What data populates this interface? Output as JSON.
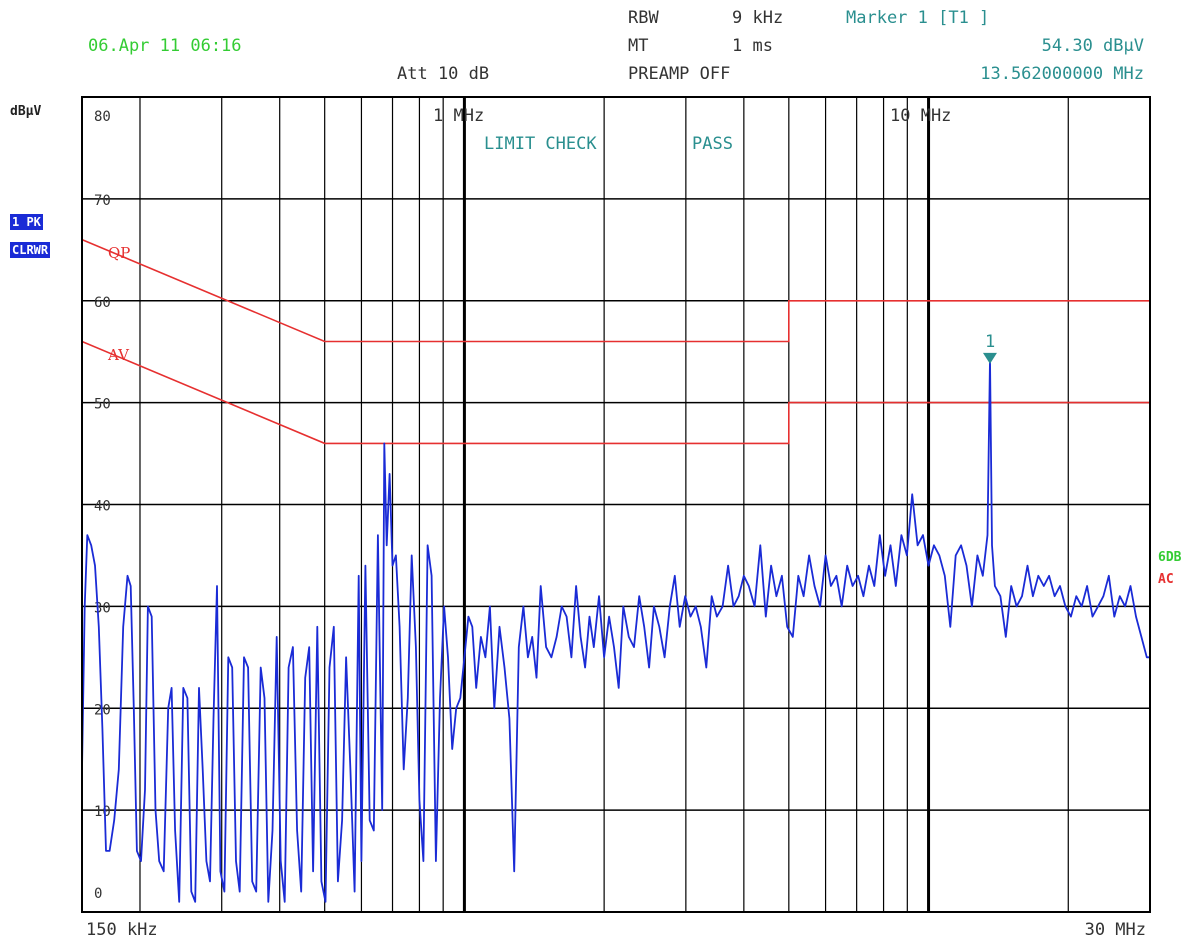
{
  "header": {
    "datetime": "06.Apr 11 06:16",
    "rbw_label": "RBW",
    "rbw_value": "9 kHz",
    "mt_label": "MT",
    "mt_value": "1 ms",
    "att": "Att 10 dB",
    "preamp": "PREAMP OFF",
    "marker_title": "Marker 1 [T1 ]",
    "marker_level": "54.30 dBµV",
    "marker_freq": "13.562000000 MHz"
  },
  "side": {
    "unit": "dBµV",
    "trace_badge_1": "1 PK",
    "trace_badge_2": "CLRWR",
    "right_label_1": "6DB",
    "right_label_2": "AC"
  },
  "colors": {
    "trace": "#1a2bd6",
    "limit": "#e63030",
    "annotation": "#2a8f8f",
    "grid": "#000000"
  },
  "chart_data": {
    "type": "line",
    "x_scale": "log",
    "xlim_hz": [
      150000,
      30000000
    ],
    "ylim": [
      0,
      80
    ],
    "y_ticks": [
      0,
      10,
      20,
      30,
      40,
      50,
      60,
      70,
      80
    ],
    "x_tick_labels": [
      {
        "label": "1 MHz",
        "hz": 1000000
      },
      {
        "label": "10 MHz",
        "hz": 10000000
      }
    ],
    "x_edge_labels": {
      "start": "150 kHz",
      "stop": "30 MHz"
    },
    "status_text": [
      "LIMIT CHECK",
      "PASS"
    ],
    "limit_lines": [
      {
        "name": "QP",
        "points": [
          [
            150000,
            66
          ],
          [
            500000,
            56
          ],
          [
            5000000,
            56
          ],
          [
            5000000,
            60
          ],
          [
            30000000,
            60
          ]
        ]
      },
      {
        "name": "AV",
        "points": [
          [
            150000,
            56
          ],
          [
            500000,
            46
          ],
          [
            5000000,
            46
          ],
          [
            5000000,
            50
          ],
          [
            30000000,
            50
          ]
        ]
      }
    ],
    "marker": {
      "label": "1",
      "freq_hz": 13562000,
      "level": 54.3
    },
    "series": [
      {
        "points": [
          [
            150000,
            14
          ],
          [
            152000,
            30
          ],
          [
            154000,
            37
          ],
          [
            157000,
            36
          ],
          [
            160000,
            34
          ],
          [
            163000,
            28
          ],
          [
            166000,
            18
          ],
          [
            169000,
            6
          ],
          [
            172000,
            6
          ],
          [
            176000,
            9
          ],
          [
            180000,
            14
          ],
          [
            184000,
            28
          ],
          [
            188000,
            33
          ],
          [
            191000,
            32
          ],
          [
            194000,
            20
          ],
          [
            197000,
            6
          ],
          [
            201000,
            5
          ],
          [
            205000,
            12
          ],
          [
            208000,
            30
          ],
          [
            212000,
            29
          ],
          [
            216000,
            10
          ],
          [
            220000,
            5
          ],
          [
            225000,
            4
          ],
          [
            230000,
            20
          ],
          [
            234000,
            22
          ],
          [
            238000,
            8
          ],
          [
            243000,
            1
          ],
          [
            248000,
            22
          ],
          [
            253000,
            21
          ],
          [
            258000,
            2
          ],
          [
            263000,
            1
          ],
          [
            268000,
            22
          ],
          [
            273000,
            14
          ],
          [
            278000,
            5
          ],
          [
            283000,
            3
          ],
          [
            288000,
            19
          ],
          [
            293000,
            32
          ],
          [
            298000,
            4
          ],
          [
            304000,
            2
          ],
          [
            310000,
            25
          ],
          [
            316000,
            24
          ],
          [
            322000,
            5
          ],
          [
            328000,
            2
          ],
          [
            335000,
            25
          ],
          [
            342000,
            24
          ],
          [
            349000,
            3
          ],
          [
            356000,
            2
          ],
          [
            364000,
            24
          ],
          [
            371000,
            21
          ],
          [
            378000,
            1
          ],
          [
            386000,
            8
          ],
          [
            394000,
            27
          ],
          [
            402000,
            5
          ],
          [
            410000,
            1
          ],
          [
            418000,
            24
          ],
          [
            427000,
            26
          ],
          [
            436000,
            8
          ],
          [
            445000,
            2
          ],
          [
            454000,
            23
          ],
          [
            463000,
            26
          ],
          [
            472000,
            4
          ],
          [
            482000,
            28
          ],
          [
            492000,
            3
          ],
          [
            502000,
            1
          ],
          [
            512000,
            24
          ],
          [
            523000,
            28
          ],
          [
            534000,
            3
          ],
          [
            545000,
            9
          ],
          [
            556000,
            25
          ],
          [
            568000,
            14
          ],
          [
            580000,
            2
          ],
          [
            592000,
            33
          ],
          [
            600000,
            5
          ],
          [
            612000,
            34
          ],
          [
            625000,
            9
          ],
          [
            638000,
            8
          ],
          [
            651000,
            37
          ],
          [
            665000,
            10
          ],
          [
            672000,
            46
          ],
          [
            680000,
            36
          ],
          [
            690000,
            43
          ],
          [
            700000,
            34
          ],
          [
            712000,
            35
          ],
          [
            725000,
            28
          ],
          [
            740000,
            14
          ],
          [
            755000,
            21
          ],
          [
            770000,
            35
          ],
          [
            786000,
            26
          ],
          [
            800000,
            11
          ],
          [
            816000,
            5
          ],
          [
            833000,
            36
          ],
          [
            850000,
            33
          ],
          [
            868000,
            5
          ],
          [
            886000,
            21
          ],
          [
            904000,
            30
          ],
          [
            922000,
            25
          ],
          [
            941000,
            16
          ],
          [
            960000,
            20
          ],
          [
            980000,
            21
          ],
          [
            1000000,
            25
          ],
          [
            1020000,
            29
          ],
          [
            1040000,
            28
          ],
          [
            1060000,
            22
          ],
          [
            1085000,
            27
          ],
          [
            1110000,
            25
          ],
          [
            1135000,
            30
          ],
          [
            1160000,
            20
          ],
          [
            1190000,
            28
          ],
          [
            1220000,
            24
          ],
          [
            1250000,
            19
          ],
          [
            1280000,
            4
          ],
          [
            1310000,
            26
          ],
          [
            1340000,
            30
          ],
          [
            1370000,
            25
          ],
          [
            1400000,
            27
          ],
          [
            1430000,
            23
          ],
          [
            1460000,
            32
          ],
          [
            1500000,
            26
          ],
          [
            1540000,
            25
          ],
          [
            1580000,
            27
          ],
          [
            1620000,
            30
          ],
          [
            1660000,
            29
          ],
          [
            1700000,
            25
          ],
          [
            1740000,
            32
          ],
          [
            1780000,
            27
          ],
          [
            1820000,
            24
          ],
          [
            1860000,
            29
          ],
          [
            1900000,
            26
          ],
          [
            1950000,
            31
          ],
          [
            2000000,
            25
          ],
          [
            2050000,
            29
          ],
          [
            2100000,
            26
          ],
          [
            2150000,
            22
          ],
          [
            2200000,
            30
          ],
          [
            2260000,
            27
          ],
          [
            2320000,
            26
          ],
          [
            2380000,
            31
          ],
          [
            2440000,
            28
          ],
          [
            2500000,
            24
          ],
          [
            2560000,
            30
          ],
          [
            2630000,
            28
          ],
          [
            2700000,
            25
          ],
          [
            2770000,
            30
          ],
          [
            2840000,
            33
          ],
          [
            2910000,
            28
          ],
          [
            2990000,
            31
          ],
          [
            3070000,
            29
          ],
          [
            3150000,
            30
          ],
          [
            3230000,
            28
          ],
          [
            3320000,
            24
          ],
          [
            3410000,
            31
          ],
          [
            3500000,
            29
          ],
          [
            3600000,
            30
          ],
          [
            3700000,
            34
          ],
          [
            3800000,
            30
          ],
          [
            3900000,
            31
          ],
          [
            4000000,
            33
          ],
          [
            4100000,
            32
          ],
          [
            4220000,
            30
          ],
          [
            4340000,
            36
          ],
          [
            4460000,
            29
          ],
          [
            4580000,
            34
          ],
          [
            4700000,
            31
          ],
          [
            4830000,
            33
          ],
          [
            4960000,
            28
          ],
          [
            5100000,
            27
          ],
          [
            5240000,
            33
          ],
          [
            5380000,
            31
          ],
          [
            5530000,
            35
          ],
          [
            5680000,
            32
          ],
          [
            5840000,
            30
          ],
          [
            6000000,
            35
          ],
          [
            6160000,
            32
          ],
          [
            6330000,
            33
          ],
          [
            6500000,
            30
          ],
          [
            6680000,
            34
          ],
          [
            6860000,
            32
          ],
          [
            7050000,
            33
          ],
          [
            7240000,
            31
          ],
          [
            7440000,
            34
          ],
          [
            7640000,
            32
          ],
          [
            7850000,
            37
          ],
          [
            8060000,
            33
          ],
          [
            8280000,
            36
          ],
          [
            8500000,
            32
          ],
          [
            8740000,
            37
          ],
          [
            8980000,
            35
          ],
          [
            9220000,
            41
          ],
          [
            9470000,
            36
          ],
          [
            9730000,
            37
          ],
          [
            10000000,
            34
          ],
          [
            10270000,
            36
          ],
          [
            10550000,
            35
          ],
          [
            10840000,
            33
          ],
          [
            11140000,
            28
          ],
          [
            11440000,
            35
          ],
          [
            11750000,
            36
          ],
          [
            12070000,
            34
          ],
          [
            12400000,
            30
          ],
          [
            12740000,
            35
          ],
          [
            13090000,
            33
          ],
          [
            13400000,
            37
          ],
          [
            13562000,
            54.3
          ],
          [
            13700000,
            36
          ],
          [
            13900000,
            32
          ],
          [
            14280000,
            31
          ],
          [
            14670000,
            27
          ],
          [
            15070000,
            32
          ],
          [
            15480000,
            30
          ],
          [
            15900000,
            31
          ],
          [
            16340000,
            34
          ],
          [
            16780000,
            31
          ],
          [
            17240000,
            33
          ],
          [
            17710000,
            32
          ],
          [
            18190000,
            33
          ],
          [
            18690000,
            31
          ],
          [
            19200000,
            32
          ],
          [
            19720000,
            30
          ],
          [
            20260000,
            29
          ],
          [
            20810000,
            31
          ],
          [
            21380000,
            30
          ],
          [
            21960000,
            32
          ],
          [
            22560000,
            29
          ],
          [
            23180000,
            30
          ],
          [
            23810000,
            31
          ],
          [
            24460000,
            33
          ],
          [
            25130000,
            29
          ],
          [
            25820000,
            31
          ],
          [
            26520000,
            30
          ],
          [
            27240000,
            32
          ],
          [
            27990000,
            29
          ],
          [
            28750000,
            27
          ],
          [
            29530000,
            25
          ],
          [
            30000000,
            25
          ]
        ]
      }
    ]
  }
}
